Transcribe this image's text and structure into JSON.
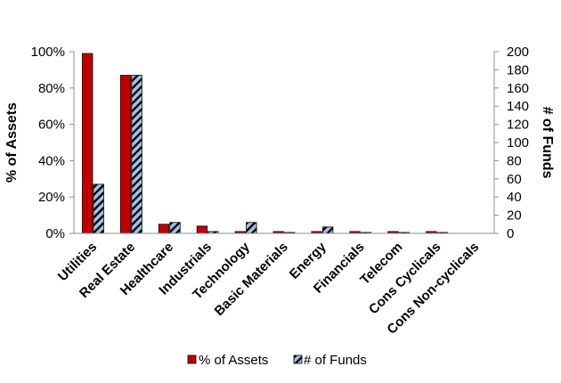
{
  "chart_data": {
    "type": "bar",
    "categories": [
      "Utilities",
      "Real Estate",
      "Healthcare",
      "Industrials",
      "Technology",
      "Basic Materials",
      "Energy",
      "Financials",
      "Telecom",
      "Cons Cyclicals",
      "Cons Non-cyclicals"
    ],
    "series": [
      {
        "name": "% of Assets",
        "axis": "left",
        "color": "#c00000",
        "pattern": "solid",
        "values": [
          99,
          87,
          5,
          4,
          1,
          1,
          1,
          1,
          1,
          1,
          0
        ]
      },
      {
        "name": "# of Funds",
        "axis": "right",
        "color": "#9dc3e6",
        "pattern": "black diagonal stripes",
        "values": [
          54,
          174,
          12,
          2,
          12,
          1,
          7,
          1,
          1,
          1,
          0
        ]
      }
    ],
    "ylabel": "% of Assets",
    "y2label": "# of Funds",
    "ylim": [
      0,
      100
    ],
    "y2lim": [
      0,
      200
    ],
    "yticks": [
      "0%",
      "20%",
      "40%",
      "60%",
      "80%",
      "100%"
    ],
    "y2ticks": [
      "0",
      "20",
      "40",
      "60",
      "80",
      "100",
      "120",
      "140",
      "160",
      "180",
      "200"
    ],
    "legend_position": "bottom",
    "grid": false
  }
}
